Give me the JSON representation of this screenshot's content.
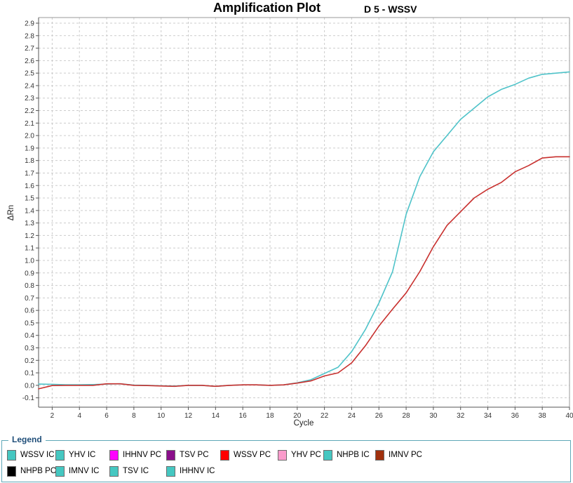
{
  "header": {
    "title": "Amplification Plot",
    "sample_label": "D 5 - WSSV"
  },
  "chart_data": {
    "type": "line",
    "title": "Amplification Plot",
    "subtitle": "D 5 - WSSV",
    "xlabel": "Cycle",
    "ylabel": "ΔRn",
    "xlim": [
      1,
      40
    ],
    "ylim": [
      -0.175,
      2.945
    ],
    "x_ticks": [
      2,
      4,
      6,
      8,
      10,
      12,
      14,
      16,
      18,
      20,
      22,
      24,
      26,
      28,
      30,
      32,
      34,
      36,
      38,
      40
    ],
    "y_ticks": [
      -0.1,
      0.0,
      0.1,
      0.2,
      0.3,
      0.4,
      0.5,
      0.6,
      0.7,
      0.8,
      0.9,
      1.0,
      1.1,
      1.2,
      1.3,
      1.4,
      1.5,
      1.6,
      1.7,
      1.8,
      1.9,
      2.0,
      2.1,
      2.2,
      2.3,
      2.4,
      2.5,
      2.6,
      2.7,
      2.8,
      2.9
    ],
    "grid": "dashed both axes",
    "legend_position": "bottom panel",
    "x": [
      1,
      2,
      3,
      4,
      5,
      6,
      7,
      8,
      9,
      10,
      11,
      12,
      13,
      14,
      15,
      16,
      17,
      18,
      19,
      20,
      21,
      22,
      23,
      24,
      25,
      26,
      27,
      28,
      29,
      30,
      31,
      32,
      33,
      34,
      35,
      36,
      37,
      38,
      39,
      40
    ],
    "series": [
      {
        "name": "series-cyan",
        "color": "#4FC3C9",
        "values": [
          0.01,
          0.008,
          0.005,
          0.005,
          0.006,
          0.01,
          0.012,
          0.002,
          0.0,
          -0.004,
          -0.006,
          0.0,
          0.0,
          -0.008,
          0.0,
          0.004,
          0.004,
          0.0,
          0.004,
          0.02,
          0.045,
          0.095,
          0.145,
          0.27,
          0.445,
          0.66,
          0.91,
          1.37,
          1.67,
          1.87,
          2.0,
          2.13,
          2.22,
          2.31,
          2.37,
          2.41,
          2.46,
          2.49,
          2.5,
          2.51
        ]
      },
      {
        "name": "series-red",
        "color": "#C8302E",
        "values": [
          -0.028,
          -0.002,
          0.0,
          0.0,
          0.0,
          0.012,
          0.012,
          0.0,
          -0.002,
          -0.005,
          -0.008,
          0.0,
          0.0,
          -0.008,
          0.0,
          0.004,
          0.004,
          0.0,
          0.004,
          0.018,
          0.035,
          0.075,
          0.1,
          0.18,
          0.315,
          0.475,
          0.61,
          0.74,
          0.91,
          1.11,
          1.28,
          1.39,
          1.5,
          1.57,
          1.625,
          1.71,
          1.76,
          1.82,
          1.83,
          1.83
        ]
      }
    ]
  },
  "legend": {
    "title": "Legend",
    "rows": [
      [
        {
          "label": "WSSV IC",
          "color": "#45C7C1"
        },
        {
          "label": "YHV IC",
          "color": "#45C7C1"
        },
        {
          "label": "IHHNV PC",
          "color": "#FF00FF"
        },
        {
          "label": "TSV PC",
          "color": "#8B0F8B"
        },
        {
          "label": "WSSV PC",
          "color": "#FF0000"
        },
        {
          "label": "YHV PC",
          "color": "#FA9BCB"
        },
        {
          "label": "NHPB IC",
          "color": "#45C7C1"
        },
        {
          "label": "IMNV PC",
          "color": "#A0300D"
        }
      ],
      [
        {
          "label": "NHPB PC",
          "color": "#000000"
        },
        {
          "label": "IMNV IC",
          "color": "#45C7C1"
        },
        {
          "label": "TSV IC",
          "color": "#45C7C1"
        },
        {
          "label": "IHHNV IC",
          "color": "#45C7C1"
        }
      ]
    ]
  },
  "colors": {
    "background": "#FFFFFF",
    "grid": "#CCCCCC",
    "axis_dark": "#555555",
    "axis_light": "#9A9A9A",
    "tick_label": "#333333",
    "legend_border": "#5FA8B8",
    "legend_title": "#1F4E79",
    "curve_cyan": "#4FC3C9",
    "curve_red": "#C8302E"
  }
}
